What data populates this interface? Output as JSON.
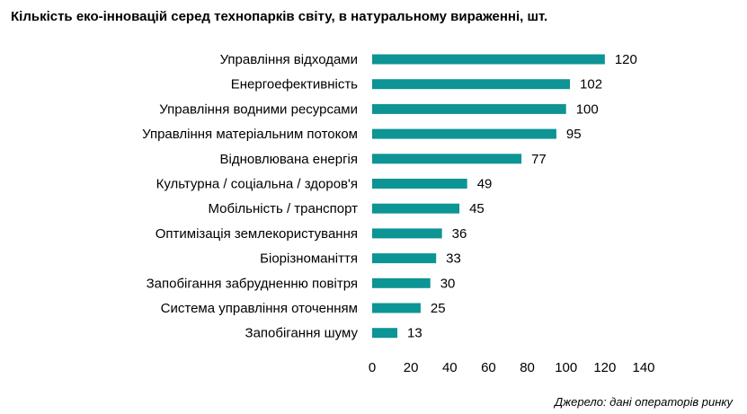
{
  "title": "Кількість еко-інновацій серед технопарків світу, в натуральному вираженні, шт.",
  "source": "Джерело: дані операторів ринку",
  "colors": {
    "bar": "#0d9494",
    "text": "#000000"
  },
  "chart_data": {
    "type": "bar",
    "orientation": "horizontal",
    "categories": [
      "Управління відходами",
      "Енергоефективність",
      "Управління водними ресурсами",
      "Управління матеріальним потоком",
      "Відновлювана енергія",
      "Культурна / соціальна / здоров'я",
      "Мобільність / транспорт",
      "Оптимізація землекористування",
      "Біорізноманіття",
      "Запобігання забрудненню повітря",
      "Система управління оточенням",
      "Запобігання шуму"
    ],
    "values": [
      120,
      102,
      100,
      95,
      77,
      49,
      45,
      36,
      33,
      30,
      25,
      13
    ],
    "xlim": [
      0,
      140
    ],
    "xticks": [
      0,
      20,
      40,
      60,
      80,
      100,
      120,
      140
    ],
    "grid": false,
    "legend": "none",
    "data_labels": true
  }
}
